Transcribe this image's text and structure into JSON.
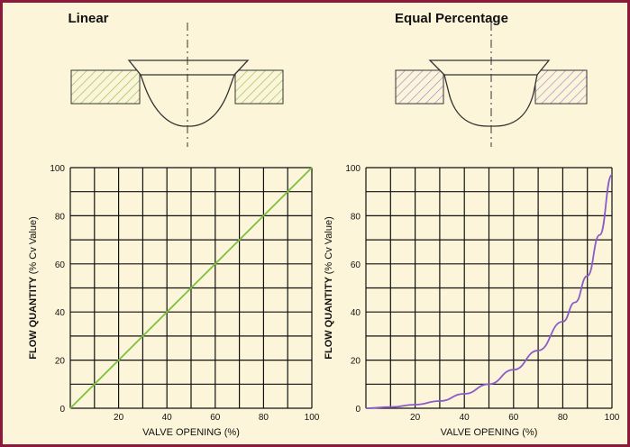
{
  "chart_data": [
    {
      "type": "line",
      "title": "Linear",
      "xlabel": "VALVE OPENING (%)",
      "ylabel_bold": "FLOW QUANTITY",
      "ylabel_rest": "(% Cv Value)",
      "xlim": [
        0,
        100
      ],
      "ylim": [
        0,
        100
      ],
      "x_ticks": [
        20,
        40,
        60,
        80,
        100
      ],
      "y_ticks": [
        0,
        20,
        40,
        60,
        80,
        100
      ],
      "grid": true,
      "line_color": "#7cc242",
      "hatch_color": "#7cc242",
      "series": [
        {
          "x": [
            0,
            10,
            20,
            30,
            40,
            50,
            60,
            70,
            80,
            90,
            100
          ],
          "y": [
            0,
            10,
            20,
            30,
            40,
            50,
            60,
            70,
            80,
            90,
            100
          ]
        }
      ]
    },
    {
      "type": "line",
      "title": "Equal Percentage",
      "xlabel": "VALVE OPENING (%)",
      "ylabel_bold": "FLOW QUANTITY",
      "ylabel_rest": "(% Cv Value)",
      "xlim": [
        0,
        100
      ],
      "ylim": [
        0,
        100
      ],
      "x_ticks": [
        20,
        40,
        60,
        80,
        100
      ],
      "y_ticks": [
        0,
        20,
        40,
        60,
        80,
        100
      ],
      "grid": true,
      "line_color": "#8a5cc8",
      "hatch_color": "#9a7ad0",
      "series": [
        {
          "x": [
            0,
            10,
            20,
            30,
            40,
            50,
            60,
            70,
            80,
            85,
            90,
            95,
            100
          ],
          "y": [
            0,
            0.5,
            1.5,
            3,
            6,
            10,
            16,
            24,
            36,
            44,
            55,
            72,
            97
          ]
        }
      ]
    }
  ]
}
